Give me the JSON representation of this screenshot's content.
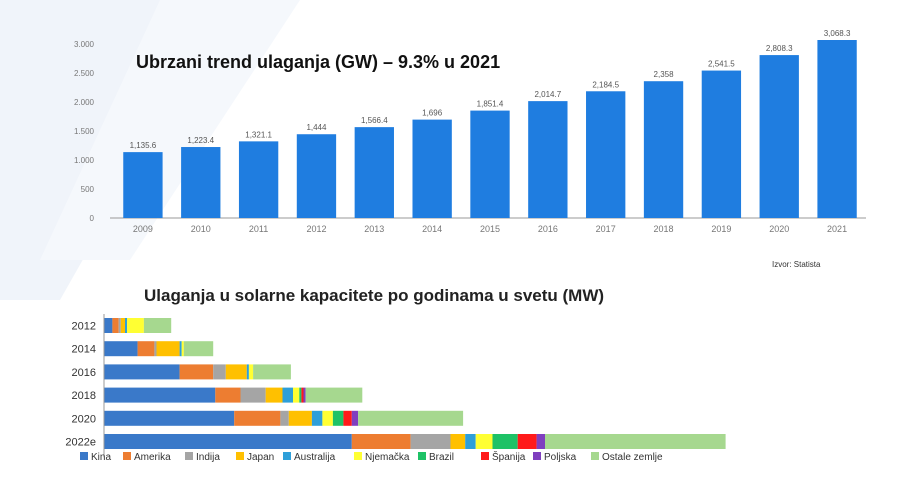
{
  "chart_data": [
    {
      "type": "bar",
      "title": "Ubrzani trend ulaganja (GW) – 9.3% u 2021",
      "source": "Izvor: Statista",
      "categories": [
        "2009",
        "2010",
        "2011",
        "2012",
        "2013",
        "2014",
        "2015",
        "2016",
        "2017",
        "2018",
        "2019",
        "2020",
        "2021"
      ],
      "values": [
        1135.6,
        1223.4,
        1321.1,
        1444,
        1566.4,
        1696,
        1851.4,
        2014.7,
        2184.5,
        2358,
        2541.5,
        2808.3,
        3068.3
      ],
      "value_labels": [
        "1,135.6",
        "1,223.4",
        "1,321.1",
        "1,444",
        "1,566.4",
        "1,696",
        "1,851.4",
        "2,014.7",
        "2,184.5",
        "2,358",
        "2,541.5",
        "2,808.3",
        "3,068.3"
      ],
      "yticks": [
        0,
        500,
        1000,
        1500,
        2000,
        2500,
        3000
      ],
      "ytick_labels": [
        "0",
        "500",
        "1.000",
        "1.500",
        "2.000",
        "2.500",
        "3.000"
      ],
      "ylim": [
        0,
        3068.3
      ],
      "grid": false,
      "color": "#1f7de0"
    },
    {
      "type": "bar",
      "orientation": "horizontal",
      "stacked": true,
      "title": "Ulaganja u solarne kapacitete po godinama u svetu (MW)",
      "categories": [
        "2012",
        "2014",
        "2016",
        "2018",
        "2020",
        "2022e"
      ],
      "xlim": [
        0,
        300000
      ],
      "legend_position": "bottom",
      "series": [
        {
          "name": "Kina",
          "color": "#3a79c9",
          "values": [
            4000,
            16000,
            36000,
            53000,
            62000,
            118000
          ]
        },
        {
          "name": "Amerika",
          "color": "#ed7d31",
          "values": [
            3000,
            8000,
            16000,
            12000,
            22000,
            28000
          ]
        },
        {
          "name": "Indija",
          "color": "#a5a5a5",
          "values": [
            1000,
            1000,
            6000,
            12000,
            4000,
            19000
          ]
        },
        {
          "name": "Japan",
          "color": "#ffc000",
          "values": [
            2000,
            11000,
            10000,
            8000,
            11000,
            7000
          ]
        },
        {
          "name": "Australija",
          "color": "#2e9fd9",
          "values": [
            1000,
            1000,
            1000,
            5000,
            5000,
            5000
          ]
        },
        {
          "name": "Njemačka",
          "color": "#ffff33",
          "values": [
            8000,
            1000,
            2000,
            3000,
            5000,
            8000
          ]
        },
        {
          "name": "Brazil",
          "color": "#1ec266",
          "values": [
            0,
            0,
            0,
            1000,
            5000,
            12000
          ]
        },
        {
          "name": "Španija",
          "color": "#ff1a1a",
          "values": [
            0,
            0,
            0,
            1000,
            4000,
            9000
          ]
        },
        {
          "name": "Poljska",
          "color": "#7f3fbf",
          "values": [
            0,
            0,
            0,
            1000,
            3000,
            4000
          ]
        },
        {
          "name": "Ostale zemlje",
          "color": "#a6d88f",
          "values": [
            13000,
            14000,
            18000,
            27000,
            50000,
            86000
          ]
        }
      ]
    }
  ]
}
